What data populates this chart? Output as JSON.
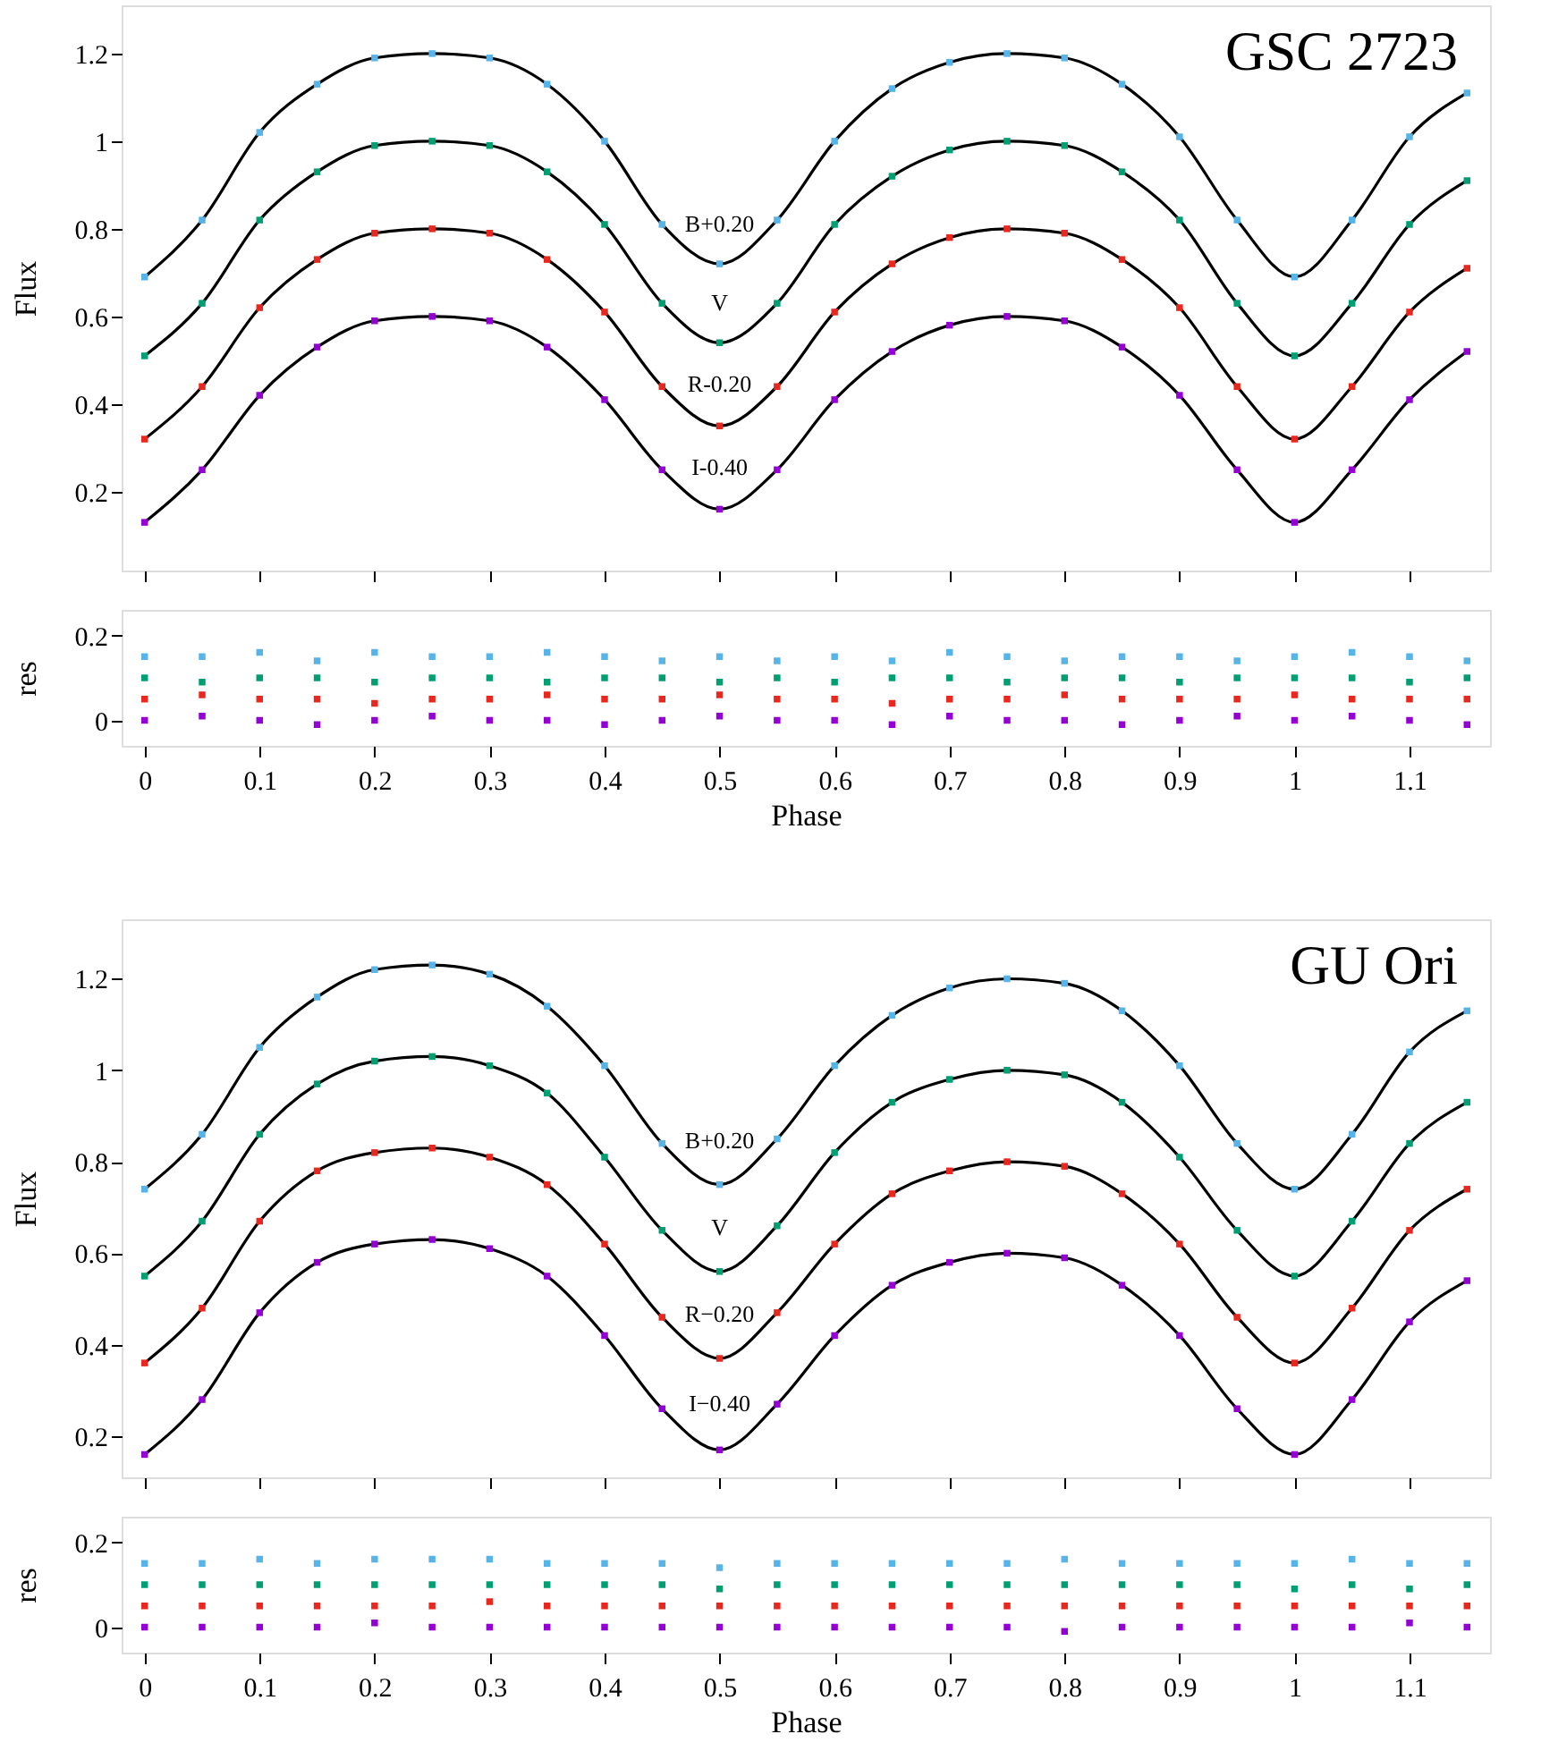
{
  "chart_data": [
    {
      "type": "scatter",
      "title": "GSC 2723",
      "ylabel": "Flux",
      "xlim": [
        -0.02,
        1.17
      ],
      "ylim": [
        0.02,
        1.31
      ],
      "xticks": [
        0,
        0.1,
        0.2,
        0.3,
        0.4,
        0.5,
        0.6,
        0.7,
        0.8,
        0.9,
        1,
        1.1
      ],
      "yticks": [
        0.2,
        0.4,
        0.6,
        0.8,
        1,
        1.2
      ],
      "tick_labels": "y",
      "x": [
        0,
        0.05,
        0.1,
        0.15,
        0.2,
        0.25,
        0.3,
        0.35,
        0.4,
        0.45,
        0.5,
        0.55,
        0.6,
        0.65,
        0.7,
        0.75,
        0.8,
        0.85,
        0.9,
        0.95,
        1.0,
        1.05,
        1.1,
        1.15
      ],
      "series": [
        {
          "marker": "square",
          "color": "#56b4e9",
          "values": [
            0.69,
            0.82,
            1.02,
            1.13,
            1.19,
            1.2,
            1.19,
            1.13,
            1.0,
            0.81,
            0.72,
            0.82,
            1.0,
            1.12,
            1.18,
            1.2,
            1.19,
            1.13,
            1.01,
            0.82,
            0.69,
            0.82,
            1.01,
            1.11
          ]
        },
        {
          "marker": "square",
          "color": "#009e73",
          "values": [
            0.51,
            0.63,
            0.82,
            0.93,
            0.99,
            1.0,
            0.99,
            0.93,
            0.81,
            0.63,
            0.54,
            0.63,
            0.81,
            0.92,
            0.98,
            1.0,
            0.99,
            0.93,
            0.82,
            0.63,
            0.51,
            0.63,
            0.81,
            0.91
          ]
        },
        {
          "marker": "square",
          "color": "#e8281e",
          "values": [
            0.32,
            0.44,
            0.62,
            0.73,
            0.79,
            0.8,
            0.79,
            0.73,
            0.61,
            0.44,
            0.35,
            0.44,
            0.61,
            0.72,
            0.78,
            0.8,
            0.79,
            0.73,
            0.62,
            0.44,
            0.32,
            0.44,
            0.61,
            0.71
          ]
        },
        {
          "marker": "square",
          "color": "#9400d3",
          "values": [
            0.13,
            0.25,
            0.42,
            0.53,
            0.59,
            0.6,
            0.59,
            0.53,
            0.41,
            0.25,
            0.16,
            0.25,
            0.41,
            0.52,
            0.58,
            0.6,
            0.59,
            0.53,
            0.42,
            0.25,
            0.13,
            0.25,
            0.41,
            0.52
          ]
        },
        {
          "type": "line",
          "color": "#000000",
          "values": [
            0.69,
            0.82,
            1.02,
            1.13,
            1.19,
            1.2,
            1.19,
            1.13,
            1.0,
            0.81,
            0.72,
            0.82,
            1.0,
            1.12,
            1.18,
            1.2,
            1.19,
            1.13,
            1.01,
            0.82,
            0.69,
            0.82,
            1.01,
            1.11
          ]
        },
        {
          "type": "line",
          "color": "#000000",
          "values": [
            0.51,
            0.63,
            0.82,
            0.93,
            0.99,
            1.0,
            0.99,
            0.93,
            0.81,
            0.63,
            0.54,
            0.63,
            0.81,
            0.92,
            0.98,
            1.0,
            0.99,
            0.93,
            0.82,
            0.63,
            0.51,
            0.63,
            0.81,
            0.91
          ]
        },
        {
          "type": "line",
          "color": "#000000",
          "values": [
            0.32,
            0.44,
            0.62,
            0.73,
            0.79,
            0.8,
            0.79,
            0.73,
            0.61,
            0.44,
            0.35,
            0.44,
            0.61,
            0.72,
            0.78,
            0.8,
            0.79,
            0.73,
            0.62,
            0.44,
            0.32,
            0.44,
            0.61,
            0.71
          ]
        },
        {
          "type": "line",
          "color": "#000000",
          "values": [
            0.13,
            0.25,
            0.42,
            0.53,
            0.59,
            0.6,
            0.59,
            0.53,
            0.41,
            0.25,
            0.16,
            0.25,
            0.41,
            0.52,
            0.58,
            0.6,
            0.59,
            0.53,
            0.42,
            0.25,
            0.13,
            0.25,
            0.41,
            0.52
          ]
        }
      ],
      "annotations": [
        "B+0.20",
        "V",
        "R-0.20",
        "I-0.40"
      ]
    },
    {
      "type": "scatter",
      "xlabel": "Phase",
      "ylabel": "res",
      "xlim": [
        -0.02,
        1.17
      ],
      "ylim": [
        -0.06,
        0.26
      ],
      "xticks": [
        0,
        0.1,
        0.2,
        0.3,
        0.4,
        0.5,
        0.6,
        0.7,
        0.8,
        0.9,
        1,
        1.1
      ],
      "yticks": [
        0,
        0.2
      ],
      "marker": "square",
      "x": [
        0,
        0.05,
        0.1,
        0.15,
        0.2,
        0.25,
        0.3,
        0.35,
        0.4,
        0.45,
        0.5,
        0.55,
        0.6,
        0.65,
        0.7,
        0.75,
        0.8,
        0.85,
        0.9,
        0.95,
        1.0,
        1.05,
        1.1,
        1.15
      ],
      "series": [
        {
          "color": "#56b4e9",
          "values": [
            0.15,
            0.15,
            0.16,
            0.14,
            0.16,
            0.15,
            0.15,
            0.16,
            0.15,
            0.14,
            0.15,
            0.14,
            0.15,
            0.14,
            0.16,
            0.15,
            0.14,
            0.15,
            0.15,
            0.14,
            0.15,
            0.16,
            0.15,
            0.14
          ]
        },
        {
          "color": "#009e73",
          "values": [
            0.1,
            0.09,
            0.1,
            0.1,
            0.09,
            0.1,
            0.1,
            0.09,
            0.1,
            0.1,
            0.09,
            0.1,
            0.09,
            0.1,
            0.1,
            0.09,
            0.1,
            0.1,
            0.09,
            0.1,
            0.1,
            0.1,
            0.09,
            0.1
          ]
        },
        {
          "color": "#e8281e",
          "values": [
            0.05,
            0.06,
            0.05,
            0.05,
            0.04,
            0.05,
            0.05,
            0.06,
            0.05,
            0.05,
            0.06,
            0.05,
            0.05,
            0.04,
            0.05,
            0.05,
            0.06,
            0.05,
            0.05,
            0.05,
            0.06,
            0.05,
            0.05,
            0.05
          ]
        },
        {
          "color": "#9400d3",
          "values": [
            0.0,
            0.01,
            0.0,
            -0.01,
            0.0,
            0.01,
            0.0,
            0.0,
            -0.01,
            0.0,
            0.01,
            0.0,
            0.0,
            -0.01,
            0.01,
            0.0,
            0.0,
            -0.01,
            0.0,
            0.01,
            0.0,
            0.01,
            0.0,
            -0.01
          ]
        }
      ]
    },
    {
      "type": "scatter",
      "title": "GU Ori",
      "ylabel": "Flux",
      "xlim": [
        -0.02,
        1.17
      ],
      "ylim": [
        0.11,
        1.33
      ],
      "xticks": [
        0,
        0.1,
        0.2,
        0.3,
        0.4,
        0.5,
        0.6,
        0.7,
        0.8,
        0.9,
        1,
        1.1
      ],
      "yticks": [
        0.2,
        0.4,
        0.6,
        0.8,
        1,
        1.2
      ],
      "tick_labels": "y",
      "x": [
        0,
        0.05,
        0.1,
        0.15,
        0.2,
        0.25,
        0.3,
        0.35,
        0.4,
        0.45,
        0.5,
        0.55,
        0.6,
        0.65,
        0.7,
        0.75,
        0.8,
        0.85,
        0.9,
        0.95,
        1.0,
        1.05,
        1.1,
        1.15
      ],
      "series": [
        {
          "marker": "square",
          "color": "#56b4e9",
          "values": [
            0.74,
            0.86,
            1.05,
            1.16,
            1.22,
            1.23,
            1.21,
            1.14,
            1.01,
            0.84,
            0.75,
            0.85,
            1.01,
            1.12,
            1.18,
            1.2,
            1.19,
            1.13,
            1.01,
            0.84,
            0.74,
            0.86,
            1.04,
            1.13
          ]
        },
        {
          "marker": "square",
          "color": "#009e73",
          "values": [
            0.55,
            0.67,
            0.86,
            0.97,
            1.02,
            1.03,
            1.01,
            0.95,
            0.81,
            0.65,
            0.56,
            0.66,
            0.82,
            0.93,
            0.98,
            1.0,
            0.99,
            0.93,
            0.81,
            0.65,
            0.55,
            0.67,
            0.84,
            0.93
          ]
        },
        {
          "marker": "square",
          "color": "#e8281e",
          "values": [
            0.36,
            0.48,
            0.67,
            0.78,
            0.82,
            0.83,
            0.81,
            0.75,
            0.62,
            0.46,
            0.37,
            0.47,
            0.62,
            0.73,
            0.78,
            0.8,
            0.79,
            0.73,
            0.62,
            0.46,
            0.36,
            0.48,
            0.65,
            0.74
          ]
        },
        {
          "marker": "square",
          "color": "#9400d3",
          "values": [
            0.16,
            0.28,
            0.47,
            0.58,
            0.62,
            0.63,
            0.61,
            0.55,
            0.42,
            0.26,
            0.17,
            0.27,
            0.42,
            0.53,
            0.58,
            0.6,
            0.59,
            0.53,
            0.42,
            0.26,
            0.16,
            0.28,
            0.45,
            0.54
          ]
        },
        {
          "type": "line",
          "color": "#000000",
          "values": [
            0.74,
            0.86,
            1.05,
            1.16,
            1.22,
            1.23,
            1.21,
            1.14,
            1.01,
            0.84,
            0.75,
            0.85,
            1.01,
            1.12,
            1.18,
            1.2,
            1.19,
            1.13,
            1.01,
            0.84,
            0.74,
            0.86,
            1.04,
            1.13
          ]
        },
        {
          "type": "line",
          "color": "#000000",
          "values": [
            0.55,
            0.67,
            0.86,
            0.97,
            1.02,
            1.03,
            1.01,
            0.95,
            0.81,
            0.65,
            0.56,
            0.66,
            0.82,
            0.93,
            0.98,
            1.0,
            0.99,
            0.93,
            0.81,
            0.65,
            0.55,
            0.67,
            0.84,
            0.93
          ]
        },
        {
          "type": "line",
          "color": "#000000",
          "values": [
            0.36,
            0.48,
            0.67,
            0.78,
            0.82,
            0.83,
            0.81,
            0.75,
            0.62,
            0.46,
            0.37,
            0.47,
            0.62,
            0.73,
            0.78,
            0.8,
            0.79,
            0.73,
            0.62,
            0.46,
            0.36,
            0.48,
            0.65,
            0.74
          ]
        },
        {
          "type": "line",
          "color": "#000000",
          "values": [
            0.16,
            0.28,
            0.47,
            0.58,
            0.62,
            0.63,
            0.61,
            0.55,
            0.42,
            0.26,
            0.17,
            0.27,
            0.42,
            0.53,
            0.58,
            0.6,
            0.59,
            0.53,
            0.42,
            0.26,
            0.16,
            0.28,
            0.45,
            0.54
          ]
        }
      ],
      "annotations": [
        "B+0.20",
        "V",
        "R−0.20",
        "I−0.40"
      ]
    },
    {
      "type": "scatter",
      "xlabel": "Phase",
      "ylabel": "res",
      "xlim": [
        -0.02,
        1.17
      ],
      "ylim": [
        -0.06,
        0.26
      ],
      "xticks": [
        0,
        0.1,
        0.2,
        0.3,
        0.4,
        0.5,
        0.6,
        0.7,
        0.8,
        0.9,
        1,
        1.1
      ],
      "yticks": [
        0,
        0.2
      ],
      "marker": "square",
      "x": [
        0,
        0.05,
        0.1,
        0.15,
        0.2,
        0.25,
        0.3,
        0.35,
        0.4,
        0.45,
        0.5,
        0.55,
        0.6,
        0.65,
        0.7,
        0.75,
        0.8,
        0.85,
        0.9,
        0.95,
        1.0,
        1.05,
        1.1,
        1.15
      ],
      "series": [
        {
          "color": "#56b4e9",
          "values": [
            0.15,
            0.15,
            0.16,
            0.15,
            0.16,
            0.16,
            0.16,
            0.15,
            0.15,
            0.15,
            0.14,
            0.15,
            0.15,
            0.15,
            0.15,
            0.15,
            0.16,
            0.15,
            0.15,
            0.15,
            0.15,
            0.16,
            0.15,
            0.15
          ]
        },
        {
          "color": "#009e73",
          "values": [
            0.1,
            0.1,
            0.1,
            0.1,
            0.1,
            0.1,
            0.1,
            0.1,
            0.1,
            0.1,
            0.09,
            0.1,
            0.1,
            0.1,
            0.1,
            0.1,
            0.1,
            0.1,
            0.1,
            0.1,
            0.09,
            0.1,
            0.09,
            0.1
          ]
        },
        {
          "color": "#e8281e",
          "values": [
            0.05,
            0.05,
            0.05,
            0.05,
            0.05,
            0.05,
            0.06,
            0.05,
            0.05,
            0.05,
            0.05,
            0.05,
            0.05,
            0.05,
            0.05,
            0.05,
            0.05,
            0.05,
            0.05,
            0.05,
            0.05,
            0.05,
            0.05,
            0.05
          ]
        },
        {
          "color": "#9400d3",
          "values": [
            0.0,
            0.0,
            0.0,
            0.0,
            0.01,
            0.0,
            0.0,
            0.0,
            0.0,
            0.0,
            0.0,
            0.0,
            0.0,
            0.0,
            0.0,
            0.0,
            -0.01,
            0.0,
            0.0,
            0.0,
            0.0,
            0.0,
            0.01,
            0.0
          ]
        }
      ]
    }
  ]
}
